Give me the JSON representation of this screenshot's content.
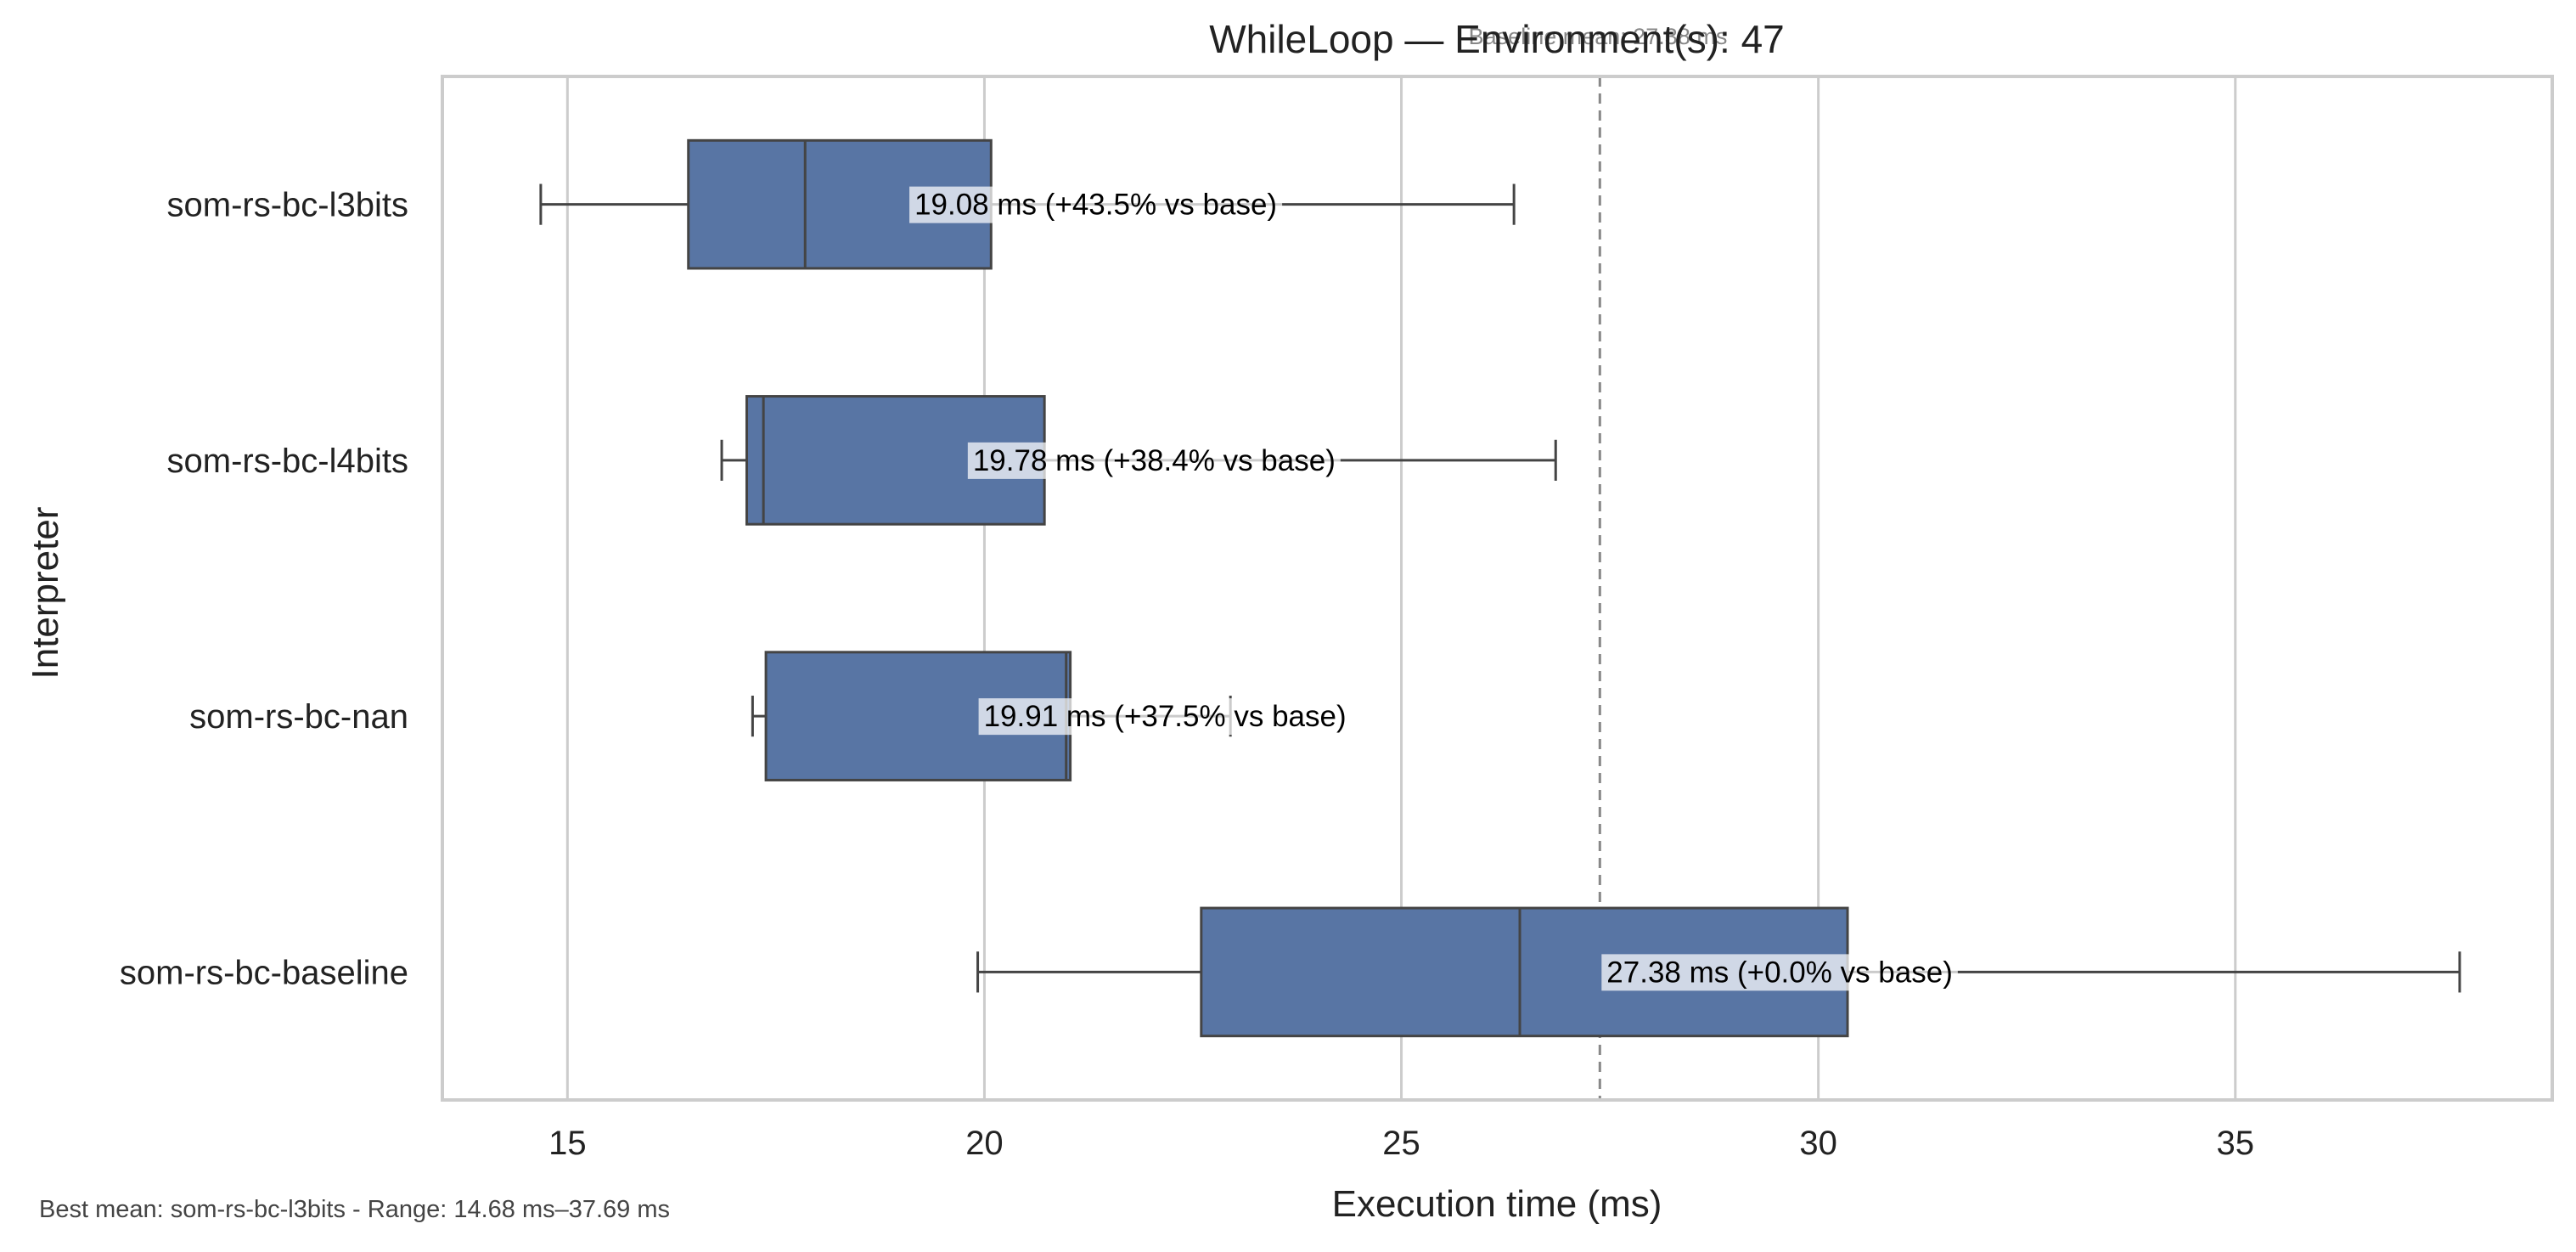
{
  "chart_data": {
    "type": "box",
    "orientation": "horizontal",
    "title": "WhileLoop — Environment(s): 47",
    "baseline_label": "Baseline mean: 27.38 ms",
    "xlabel": "Execution time (ms)",
    "ylabel": "Interpreter",
    "xlim": [
      13.5,
      38.8
    ],
    "xticks": [
      15,
      20,
      25,
      30,
      35
    ],
    "grid": true,
    "baseline_mean": 27.38,
    "categories": [
      "som-rs-bc-l3bits",
      "som-rs-bc-l4bits",
      "som-rs-bc-nan",
      "som-rs-bc-baseline"
    ],
    "boxes": [
      {
        "name": "som-rs-bc-l3bits",
        "whisker_low": 14.68,
        "q1": 16.45,
        "median": 17.85,
        "q3": 20.08,
        "whisker_high": 26.35,
        "mean": 19.08,
        "annotation": "19.08 ms  (+43.5% vs base)"
      },
      {
        "name": "som-rs-bc-l4bits",
        "whisker_low": 16.85,
        "q1": 17.15,
        "median": 17.35,
        "q3": 20.72,
        "whisker_high": 26.85,
        "mean": 19.78,
        "annotation": "19.78 ms  (+38.4% vs base)"
      },
      {
        "name": "som-rs-bc-nan",
        "whisker_low": 17.22,
        "q1": 17.38,
        "median": 20.98,
        "q3": 21.03,
        "whisker_high": 22.95,
        "mean": 19.91,
        "annotation": "19.91 ms  (+37.5% vs base)"
      },
      {
        "name": "som-rs-bc-baseline",
        "whisker_low": 19.92,
        "q1": 22.6,
        "median": 26.42,
        "q3": 30.35,
        "whisker_high": 37.69,
        "mean": 27.38,
        "annotation": "27.38 ms  (+0.0% vs base)"
      }
    ],
    "colors": {
      "box": "#5875a4",
      "line": "#444444",
      "grid": "#cccccc",
      "baseline": "#888888"
    }
  },
  "footnote": "Best mean: som-rs-bc-l3bits - Range: 14.68 ms–37.69 ms"
}
